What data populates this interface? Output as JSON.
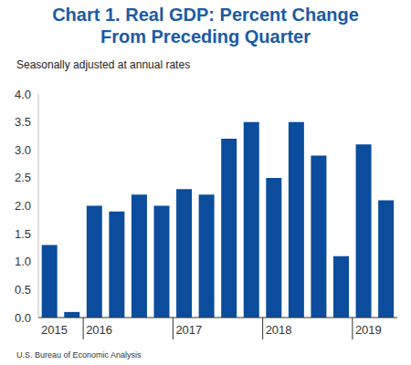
{
  "chart_data": {
    "type": "bar",
    "title": "Chart 1. Real GDP: Percent Change From Preceding Quarter",
    "subtitle": "Seasonally adjusted at annual rates",
    "source": "U.S. Bureau of Economic Analysis",
    "categories": [
      "2015",
      null,
      "2016",
      null,
      null,
      null,
      "2017",
      null,
      null,
      null,
      "2018",
      null,
      null,
      null,
      "2019",
      null
    ],
    "values": [
      1.3,
      0.1,
      2.0,
      1.9,
      2.2,
      2.0,
      2.3,
      2.2,
      3.2,
      3.5,
      2.5,
      3.5,
      2.9,
      1.1,
      3.1,
      2.1
    ],
    "color": "#0b4d9c",
    "ylim": [
      0,
      4
    ],
    "yticks": [
      {
        "value": 0,
        "label": "0.0"
      },
      0.5,
      {
        "value": 1,
        "label": "1.0"
      },
      1.5,
      {
        "value": 2,
        "label": "2.0"
      },
      2.5,
      {
        "value": 3,
        "label": "3.0"
      },
      3.5,
      {
        "value": 4,
        "label": "4.0"
      }
    ],
    "grid": false
  }
}
